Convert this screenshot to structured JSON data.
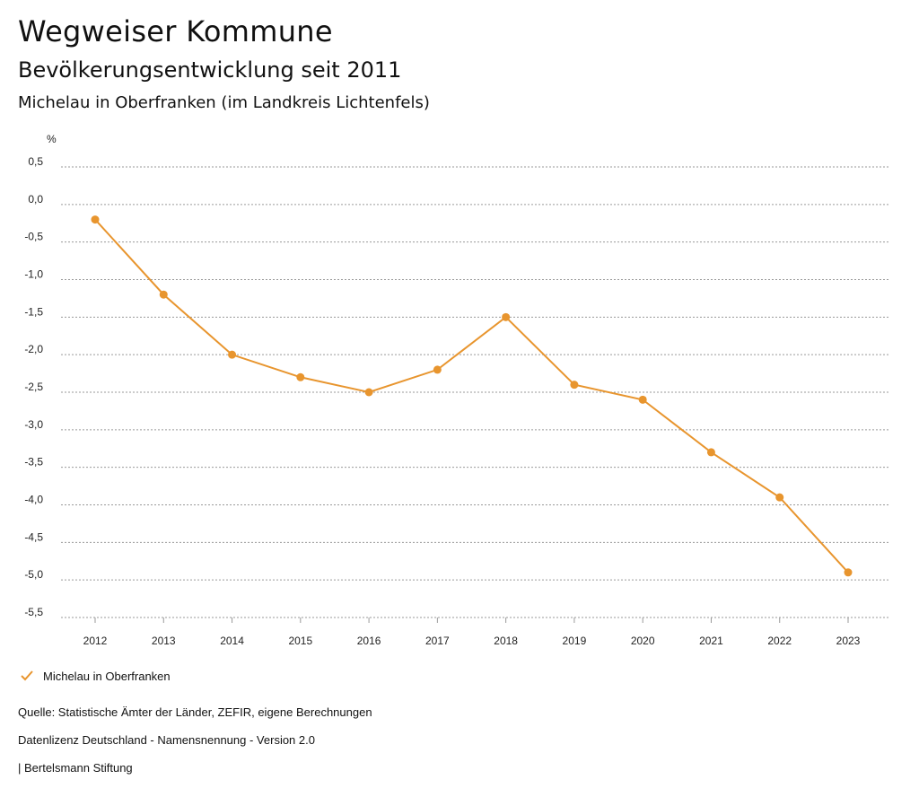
{
  "header": {
    "title": "Wegweiser Kommune",
    "subtitle": "Bevölkerungsentwicklung seit 2011",
    "region": "Michelau in Oberfranken (im Landkreis Lichtenfels)"
  },
  "chart_data": {
    "type": "line",
    "ylabel": "%",
    "xlabel": "",
    "x": [
      "2012",
      "2013",
      "2014",
      "2015",
      "2016",
      "2017",
      "2018",
      "2019",
      "2020",
      "2021",
      "2022",
      "2023"
    ],
    "series": [
      {
        "name": "Michelau in Oberfranken",
        "values": [
          -0.2,
          -1.2,
          -2.0,
          -2.3,
          -2.5,
          -2.2,
          -1.5,
          -2.4,
          -2.6,
          -3.3,
          -3.9,
          -4.9
        ],
        "color": "#E8952E"
      }
    ],
    "ylim": [
      -5.5,
      0.5
    ],
    "yticks": [
      0.5,
      0.0,
      -0.5,
      -1.0,
      -1.5,
      -2.0,
      -2.5,
      -3.0,
      -3.5,
      -4.0,
      -4.5,
      -5.0,
      -5.5
    ],
    "ytick_labels": [
      "0,5",
      "0,0",
      "-0,5",
      "-1,0",
      "-1,5",
      "-2,0",
      "-2,5",
      "-3,0",
      "-3,5",
      "-4,0",
      "-4,5",
      "-5,0",
      "-5,5"
    ],
    "grid": true,
    "legend_position": "bottom-left"
  },
  "footer": {
    "source": "Quelle: Statistische Ämter der Länder, ZEFIR, eigene Berechnungen",
    "license": "Datenlizenz Deutschland - Namensnennung - Version 2.0",
    "publisher": "| Bertelsmann Stiftung"
  }
}
